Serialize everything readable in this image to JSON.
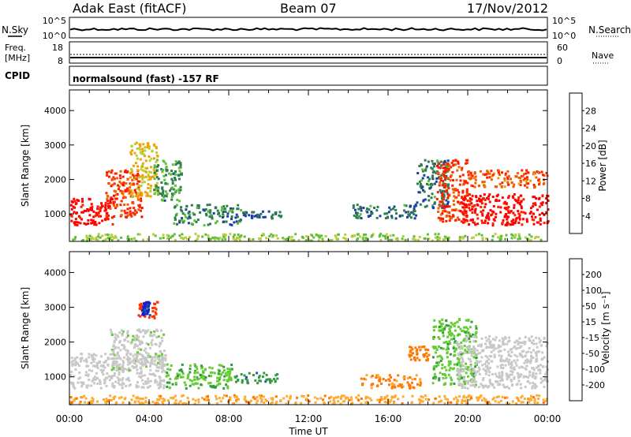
{
  "header": {
    "station": "Adak East (fitACF)",
    "beam": "Beam 07",
    "date": "17/Nov/2012"
  },
  "strip_panels": {
    "nsky_label": "N.Sky",
    "nsearch_label": "N.Search",
    "noise_ticks_left": [
      "10^5",
      "10^0"
    ],
    "noise_ticks_right": [
      "10^5",
      "10^0"
    ],
    "freq_label_1": "Freq.",
    "freq_label_2": "[MHz]",
    "freq_ticks": [
      "18",
      "8"
    ],
    "nave_label": "Nave",
    "nave_ticks": [
      "60",
      "0"
    ],
    "cpid_label": "CPID",
    "cpid_text": "normalsound (fast) -157 RF"
  },
  "colors": {
    "power_scale": [
      "#0000ee",
      "#1e3fa0",
      "#2e7d4f",
      "#5fbf3a",
      "#b8cf3a",
      "#f0a000",
      "#f06000",
      "#ff2000",
      "#ff0000"
    ],
    "velocity_scale": [
      "#ff0000",
      "#ff3300",
      "#ff7700",
      "#ffaa33",
      "#c8c8c8",
      "#66cc33",
      "#339944",
      "#2255aa",
      "#1122cc"
    ]
  },
  "chart_data": [
    {
      "type": "heatmap",
      "name": "power",
      "ylabel": "Slant Range [km]",
      "y_ticks": [
        "1000",
        "2000",
        "3000",
        "4000"
      ],
      "ylim": [
        200,
        4600
      ],
      "xlim": [
        0,
        24
      ],
      "colorbar_label": "Power [dB]",
      "colorbar_ticks": [
        "4",
        "8",
        "12",
        "16",
        "20",
        "24",
        "28"
      ],
      "colorbar_range": [
        0,
        32
      ],
      "regions": [
        {
          "t0": 0.0,
          "t1": 2.2,
          "r0": 700,
          "r1": 1500,
          "value": 30
        },
        {
          "t0": 1.8,
          "t1": 3.6,
          "r0": 900,
          "r1": 2300,
          "value": 26
        },
        {
          "t0": 3.0,
          "t1": 4.4,
          "r0": 1500,
          "r1": 3100,
          "value": 18
        },
        {
          "t0": 4.2,
          "t1": 5.6,
          "r0": 1400,
          "r1": 2600,
          "value": 10
        },
        {
          "t0": 5.2,
          "t1": 8.6,
          "r0": 700,
          "r1": 1300,
          "value": 9
        },
        {
          "t0": 8.6,
          "t1": 10.6,
          "r0": 900,
          "r1": 1100,
          "value": 7
        },
        {
          "t0": 14.2,
          "t1": 17.4,
          "r0": 900,
          "r1": 1300,
          "value": 8
        },
        {
          "t0": 17.4,
          "t1": 19.0,
          "r0": 1200,
          "r1": 2600,
          "value": 8
        },
        {
          "t0": 18.4,
          "t1": 20.0,
          "r0": 800,
          "r1": 2600,
          "value": 26
        },
        {
          "t0": 19.6,
          "t1": 24.0,
          "r0": 700,
          "r1": 1600,
          "value": 30
        },
        {
          "t0": 20.0,
          "t1": 24.0,
          "r0": 1800,
          "r1": 2300,
          "value": 24
        },
        {
          "t0": 0.0,
          "t1": 24.0,
          "r0": 250,
          "r1": 450,
          "value": 14
        }
      ]
    },
    {
      "type": "heatmap",
      "name": "velocity",
      "ylabel": "Slant Range [km]",
      "y_ticks": [
        "1000",
        "2000",
        "3000",
        "4000"
      ],
      "ylim": [
        200,
        4600
      ],
      "xlim": [
        0,
        24
      ],
      "colorbar_label": "Velocity [m s⁻¹]",
      "colorbar_ticks": [
        "-200",
        "-100",
        "-50",
        "-15",
        "15",
        "50",
        "100",
        "200"
      ],
      "regions": [
        {
          "t0": 0.0,
          "t1": 4.8,
          "r0": 700,
          "r1": 1700,
          "value": 0
        },
        {
          "t0": 2.0,
          "t1": 4.8,
          "r0": 1200,
          "r1": 2400,
          "value": 5
        },
        {
          "t0": 3.4,
          "t1": 4.4,
          "r0": 2700,
          "r1": 3200,
          "value": -120
        },
        {
          "t0": 3.6,
          "t1": 4.0,
          "r0": 2800,
          "r1": 3200,
          "value": 210
        },
        {
          "t0": 4.8,
          "t1": 8.2,
          "r0": 700,
          "r1": 1400,
          "value": 45
        },
        {
          "t0": 8.2,
          "t1": 10.4,
          "r0": 850,
          "r1": 1150,
          "value": 90
        },
        {
          "t0": 14.6,
          "t1": 17.6,
          "r0": 700,
          "r1": 1100,
          "value": -60
        },
        {
          "t0": 17.0,
          "t1": 18.0,
          "r0": 1500,
          "r1": 1900,
          "value": -80
        },
        {
          "t0": 18.2,
          "t1": 20.4,
          "r0": 800,
          "r1": 2700,
          "value": 40
        },
        {
          "t0": 19.4,
          "t1": 24.0,
          "r0": 700,
          "r1": 2200,
          "value": 0
        },
        {
          "t0": 0.0,
          "t1": 24.0,
          "r0": 250,
          "r1": 500,
          "value": -40
        }
      ]
    }
  ],
  "xaxis": {
    "ticks": [
      "00:00",
      "04:00",
      "08:00",
      "12:00",
      "16:00",
      "20:00",
      "00:00"
    ],
    "label": "Time UT"
  }
}
